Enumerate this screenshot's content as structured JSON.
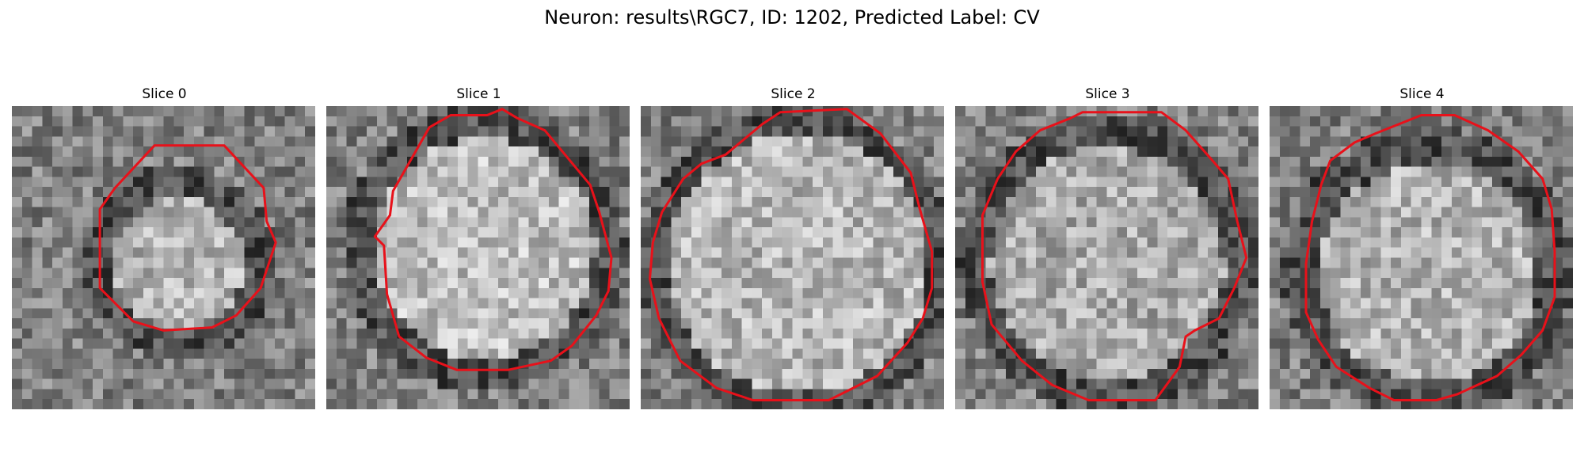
{
  "figure": {
    "title": "Neuron: results\\RGC7, ID: 1202, Predicted Label: CV"
  },
  "panels": [
    {
      "title": "Slice 0"
    },
    {
      "title": "Slice 1"
    },
    {
      "title": "Slice 2"
    },
    {
      "title": "Slice 3"
    },
    {
      "title": "Slice 4"
    }
  ],
  "colors": {
    "contour": "#e8111a",
    "background": "#ffffff"
  }
}
